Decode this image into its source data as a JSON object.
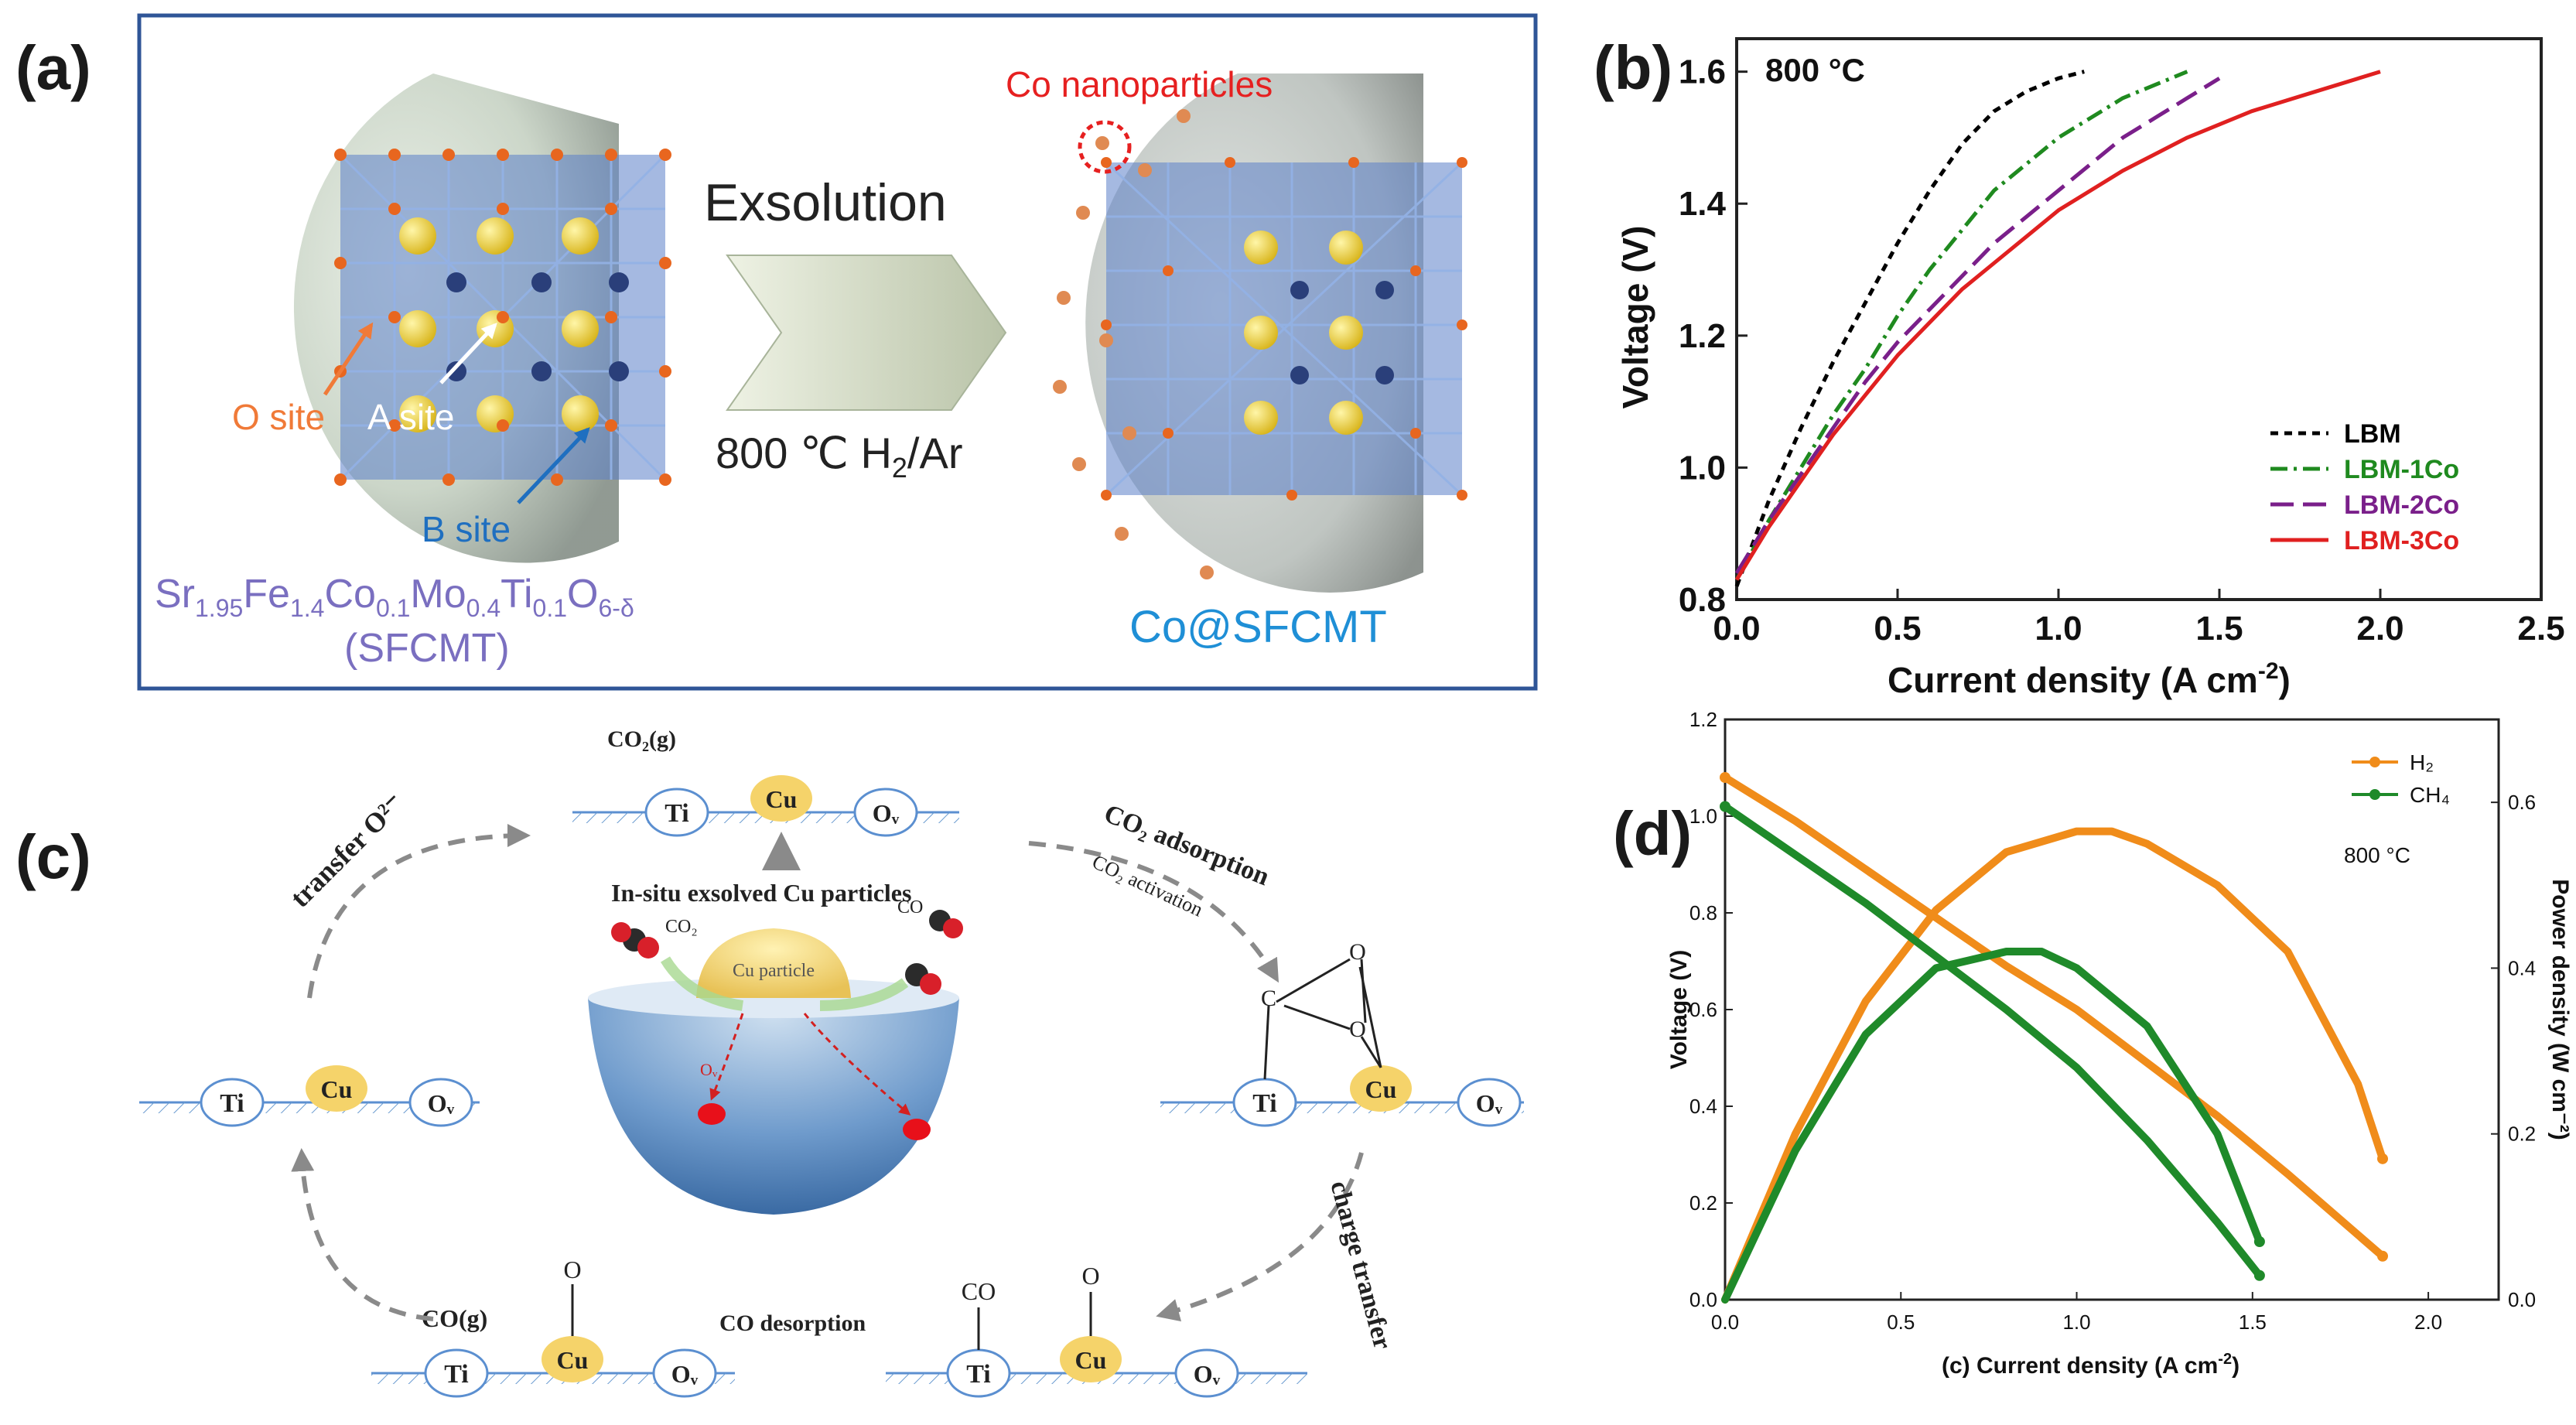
{
  "panel_a": {
    "label": "(a)",
    "co_nanoparticles": "Co nanoparticles",
    "exsolution": "Exsolution",
    "condition": "800 ℃ H₂/Ar",
    "o_site": "O site",
    "a_site": "A site",
    "b_site": "B site",
    "formula": "Sr1.95Fe1.4Co0.1Mo0.4Ti0.1O6-δ",
    "abbrev": "(SFCMT)",
    "product": "Co@SFCMT",
    "colors": {
      "frame": "#2f5597",
      "formula": "#7a6fc0",
      "product": "#1f8fd6",
      "o_site": "#f07a38",
      "highlight": "#e62020"
    }
  },
  "panel_c": {
    "label": "(c)",
    "co2_g": "CO₂(g)",
    "ti": "Ti",
    "cu": "Cu",
    "ov": "Oᵥ",
    "insitu": "In-situ exsolved Cu particles",
    "co2_adsorption": "CO₂ adsorption",
    "co2_activation": "CO₂ activation",
    "transfer_o": "transfer O²⁻",
    "charge_transfer": "charge transfer",
    "co_desorption": "CO desorption",
    "co_g": "CO(g)",
    "co": "CO",
    "o": "O",
    "c": "C",
    "co2_small": "CO₂",
    "co_small": "CO",
    "cu_particle": "Cu particle",
    "ov_small": "Oᵥ"
  },
  "chart_b": {
    "label": "(b)",
    "annotation": "800 °C",
    "xlabel": "Current density (A cm⁻²)",
    "ylabel": "Voltage (V)",
    "chart_data": {
      "type": "line",
      "xlim": [
        0,
        2.5
      ],
      "ylim": [
        0.8,
        1.65
      ],
      "x_ticks": [
        "0.0",
        "0.5",
        "1.0",
        "1.5",
        "2.0",
        "2.5"
      ],
      "y_ticks": [
        "0.8",
        "1.0",
        "1.2",
        "1.4",
        "1.6"
      ],
      "legend_position": "bottom-right",
      "series": [
        {
          "name": "LBM",
          "color": "#000000",
          "dash": "10,8",
          "x": [
            0,
            0.1,
            0.2,
            0.3,
            0.4,
            0.5,
            0.6,
            0.7,
            0.8,
            0.9,
            1.0,
            1.08
          ],
          "y": [
            0.82,
            0.95,
            1.06,
            1.16,
            1.25,
            1.34,
            1.42,
            1.49,
            1.54,
            1.57,
            1.59,
            1.6
          ]
        },
        {
          "name": "LBM-1Co",
          "color": "#1f8a1f",
          "dash": "22,8,4,8",
          "x": [
            0,
            0.1,
            0.2,
            0.3,
            0.4,
            0.5,
            0.6,
            0.7,
            0.8,
            0.9,
            1.0,
            1.1,
            1.2,
            1.3,
            1.4
          ],
          "y": [
            0.83,
            0.92,
            1.0,
            1.08,
            1.15,
            1.23,
            1.3,
            1.36,
            1.42,
            1.46,
            1.5,
            1.53,
            1.56,
            1.58,
            1.6
          ]
        },
        {
          "name": "LBM-2Co",
          "color": "#7a1f8a",
          "dash": "30,12",
          "x": [
            0,
            0.1,
            0.2,
            0.3,
            0.4,
            0.5,
            0.6,
            0.7,
            0.8,
            0.9,
            1.0,
            1.1,
            1.2,
            1.3,
            1.4,
            1.5
          ],
          "y": [
            0.84,
            0.92,
            0.99,
            1.06,
            1.13,
            1.19,
            1.24,
            1.29,
            1.34,
            1.38,
            1.42,
            1.46,
            1.5,
            1.53,
            1.56,
            1.59
          ]
        },
        {
          "name": "LBM-3Co",
          "color": "#e02020",
          "dash": "",
          "x": [
            0,
            0.1,
            0.2,
            0.3,
            0.4,
            0.5,
            0.6,
            0.7,
            0.8,
            0.9,
            1.0,
            1.2,
            1.4,
            1.6,
            1.8,
            2.0
          ],
          "y": [
            0.83,
            0.91,
            0.98,
            1.05,
            1.11,
            1.17,
            1.22,
            1.27,
            1.31,
            1.35,
            1.39,
            1.45,
            1.5,
            1.54,
            1.57,
            1.6
          ]
        }
      ]
    }
  },
  "chart_d": {
    "label": "(d)",
    "annotation": "800 °C",
    "xlabel": "Current density (A cm⁻²)",
    "xlabel_prefix": "(c)",
    "ylabel_left": "Voltage (V)",
    "ylabel_right": "Power density (W cm⁻²)",
    "chart_data": {
      "type": "line",
      "xlim": [
        0,
        2.2
      ],
      "ylim_left": [
        0,
        1.2
      ],
      "ylim_right": [
        0,
        0.7
      ],
      "x_ticks": [
        "0.0",
        "0.5",
        "1.0",
        "1.5",
        "2.0"
      ],
      "y_ticks_left": [
        "0.0",
        "0.2",
        "0.4",
        "0.6",
        "0.8",
        "1.0",
        "1.2"
      ],
      "y_ticks_right": [
        "0.0",
        "0.2",
        "0.4",
        "0.6"
      ],
      "legend_position": "top-right",
      "series": [
        {
          "name": "H₂",
          "color": "#f08c1a",
          "voltage": {
            "x": [
              0,
              0.2,
              0.4,
              0.6,
              0.8,
              1.0,
              1.2,
              1.4,
              1.6,
              1.87
            ],
            "y": [
              1.08,
              0.99,
              0.89,
              0.79,
              0.69,
              0.6,
              0.49,
              0.38,
              0.26,
              0.09
            ]
          },
          "power": {
            "x": [
              0,
              0.2,
              0.4,
              0.6,
              0.8,
              1.0,
              1.1,
              1.2,
              1.4,
              1.6,
              1.8,
              1.87
            ],
            "y": [
              0.0,
              0.2,
              0.36,
              0.47,
              0.54,
              0.565,
              0.565,
              0.55,
              0.5,
              0.42,
              0.26,
              0.17
            ]
          }
        },
        {
          "name": "CH₄",
          "color": "#1f8a2a",
          "voltage": {
            "x": [
              0,
              0.2,
              0.4,
              0.6,
              0.8,
              1.0,
              1.2,
              1.4,
              1.52
            ],
            "y": [
              1.02,
              0.92,
              0.82,
              0.71,
              0.6,
              0.48,
              0.33,
              0.16,
              0.05
            ]
          },
          "power": {
            "x": [
              0,
              0.2,
              0.4,
              0.6,
              0.8,
              0.9,
              1.0,
              1.2,
              1.4,
              1.52
            ],
            "y": [
              0.0,
              0.18,
              0.32,
              0.4,
              0.42,
              0.42,
              0.4,
              0.33,
              0.2,
              0.07
            ]
          }
        }
      ]
    }
  }
}
